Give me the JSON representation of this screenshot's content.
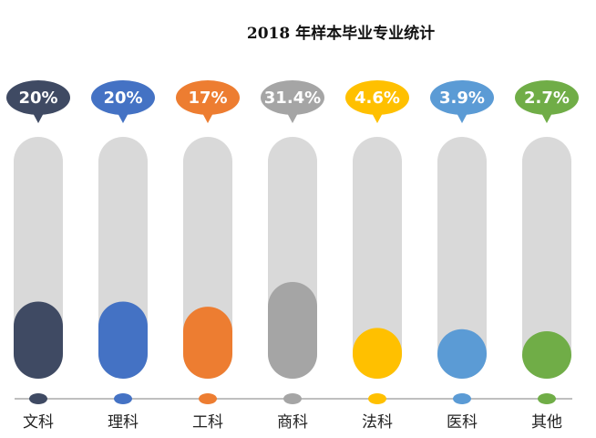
{
  "chart_data": {
    "type": "bar",
    "title": "2018 年样本毕业专业统计",
    "categories": [
      "文科",
      "理科",
      "工科",
      "商科",
      "法科",
      "医科",
      "其他"
    ],
    "values": [
      20,
      20,
      17,
      31.4,
      4.6,
      3.9,
      2.7
    ],
    "value_labels": [
      "20%",
      "20%",
      "17%",
      "31.4%",
      "4.6%",
      "3.9%",
      "2.7%"
    ],
    "colors": [
      "#3f4a63",
      "#4472c4",
      "#ed7d31",
      "#a5a5a5",
      "#ffc000",
      "#5b9bd5",
      "#70ad47"
    ],
    "track_color": "#d9d9d9",
    "axis_color": "#bfbfbf",
    "xlabel": "",
    "ylabel": "",
    "unit": "%"
  }
}
